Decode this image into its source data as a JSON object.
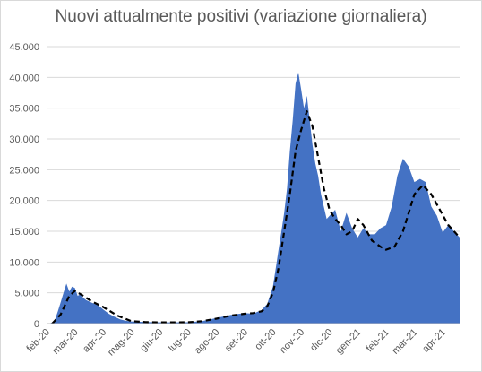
{
  "chart_data": {
    "type": "area",
    "title": "Nuovi attualmente positivi (variazione giornaliera)",
    "xlabel": "",
    "ylabel": "",
    "ylim": [
      0,
      45000
    ],
    "yticks": [
      "0",
      "5.000",
      "10.000",
      "15.000",
      "20.000",
      "25.000",
      "30.000",
      "35.000",
      "40.000",
      "45.000"
    ],
    "ytick_values": [
      0,
      5000,
      10000,
      15000,
      20000,
      25000,
      30000,
      35000,
      40000,
      45000
    ],
    "categories": [
      "feb-20",
      "mar-20",
      "apr-20",
      "mag-20",
      "giu-20",
      "lug-20",
      "ago-20",
      "set-20",
      "ott-20",
      "nov-20",
      "dic-20",
      "gen-21",
      "feb-21",
      "mar-21",
      "apr-21"
    ],
    "grid": true,
    "colors": {
      "area": "#4472c4",
      "trend": "#000000",
      "grid": "#d9d9d9",
      "text": "#595959"
    },
    "series": [
      {
        "style": "area",
        "x": [
          0,
          0.1,
          0.2,
          0.3,
          0.4,
          0.5,
          0.6,
          0.7,
          0.8,
          0.9,
          1.0,
          1.1,
          1.2,
          1.3,
          1.4,
          1.5,
          1.6,
          1.7,
          1.8,
          1.9,
          2.0,
          2.2,
          2.4,
          2.6,
          2.8,
          3.0,
          3.5,
          4.0,
          4.5,
          5.0,
          5.5,
          6.0,
          6.5,
          7.0,
          7.3,
          7.6,
          7.8,
          8.0,
          8.1,
          8.2,
          8.3,
          8.4,
          8.5,
          8.6,
          8.7,
          8.8,
          8.9,
          9.0,
          9.1,
          9.2,
          9.3,
          9.4,
          9.5,
          9.6,
          9.7,
          9.8,
          9.9,
          10.0,
          10.2,
          10.4,
          10.6,
          10.8,
          11.0,
          11.2,
          11.4,
          11.6,
          11.8,
          12.0,
          12.2,
          12.4,
          12.6,
          12.8,
          13.0,
          13.2,
          13.4,
          13.6,
          13.8,
          14.0,
          14.2,
          14.4,
          14.6
        ],
        "values": [
          0,
          0,
          200,
          700,
          2000,
          3500,
          5000,
          6500,
          5200,
          6000,
          5800,
          4500,
          4800,
          4200,
          3800,
          3600,
          3400,
          3200,
          3000,
          2700,
          2300,
          1600,
          1100,
          700,
          450,
          350,
          250,
          200,
          200,
          220,
          400,
          900,
          1400,
          1700,
          1600,
          2200,
          3200,
          6000,
          9000,
          12000,
          15000,
          18000,
          22000,
          28000,
          33000,
          39000,
          40800,
          38000,
          35000,
          37000,
          33000,
          29000,
          26000,
          24000,
          21000,
          19000,
          17000,
          17500,
          18500,
          15000,
          18000,
          15500,
          14000,
          15500,
          14500,
          14500,
          15500,
          16000,
          19000,
          24000,
          26800,
          25500,
          23000,
          23500,
          23000,
          19000,
          17500,
          14800,
          16000,
          15000,
          14000
        ]
      },
      {
        "style": "dashed-line",
        "x": [
          0.2,
          0.5,
          0.8,
          1.0,
          1.3,
          1.6,
          2.0,
          2.5,
          3.0,
          3.5,
          4.0,
          4.5,
          5.0,
          5.5,
          6.0,
          6.5,
          7.0,
          7.3,
          7.6,
          7.8,
          8.0,
          8.2,
          8.4,
          8.6,
          8.8,
          9.0,
          9.2,
          9.4,
          9.6,
          9.8,
          10.0,
          10.2,
          10.4,
          10.6,
          10.8,
          11.0,
          11.2,
          11.5,
          11.8,
          12.0,
          12.3,
          12.6,
          12.8,
          13.0,
          13.3,
          13.6,
          13.9,
          14.2,
          14.6
        ],
        "values": [
          0,
          1500,
          4500,
          5300,
          4500,
          3600,
          2700,
          1300,
          400,
          250,
          200,
          200,
          220,
          400,
          800,
          1300,
          1600,
          1700,
          2000,
          2800,
          5000,
          9000,
          15000,
          21000,
          28000,
          31500,
          34500,
          32000,
          27000,
          22000,
          18500,
          17000,
          16000,
          14500,
          15000,
          17000,
          16000,
          13500,
          12500,
          12000,
          12500,
          15000,
          18000,
          21000,
          22500,
          21000,
          18500,
          16000,
          14000
        ]
      }
    ]
  }
}
